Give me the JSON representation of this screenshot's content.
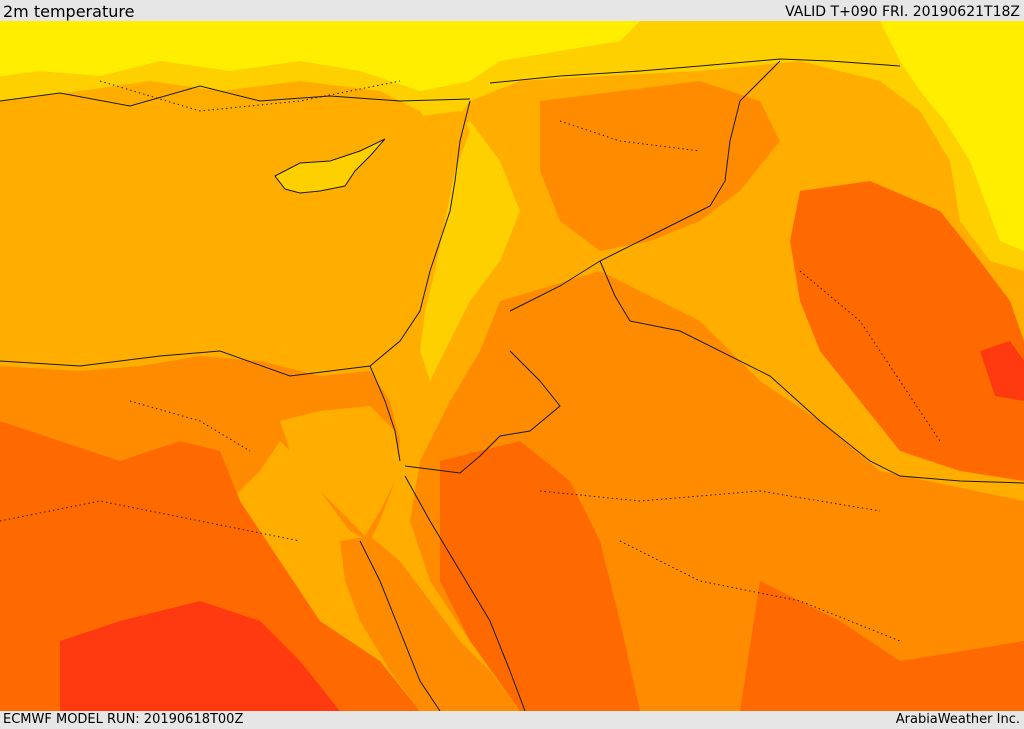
{
  "header": {
    "title": "2m temperature",
    "valid_time": "VALID T+090 FRI. 20190621T18Z"
  },
  "footer": {
    "model_run": "ECMWF MODEL RUN: 20190618T00Z",
    "credit": "ArabiaWeather Inc."
  },
  "map": {
    "field": "2m temperature",
    "palette": [
      "#ffff00",
      "#ffd700",
      "#ffae00",
      "#ff8c00",
      "#ff6a00",
      "#ff4a10",
      "#ff2a10"
    ],
    "coastline_color": "#1a1a1a",
    "border_style": "dotted"
  }
}
